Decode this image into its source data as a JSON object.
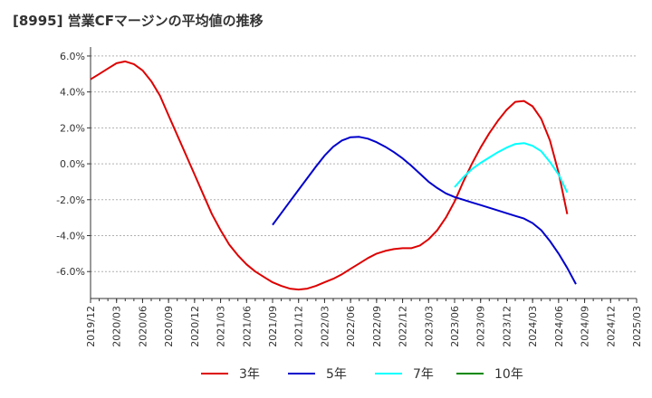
{
  "chart_data": {
    "type": "line",
    "title": "[8995]  営業CFマージンの平均値の推移",
    "xlabel": "",
    "ylabel": "",
    "x_ticks": [
      "2019/12",
      "2020/03",
      "2020/06",
      "2020/09",
      "2020/12",
      "2021/03",
      "2021/06",
      "2021/09",
      "2021/12",
      "2022/03",
      "2022/06",
      "2022/09",
      "2022/12",
      "2023/03",
      "2023/06",
      "2023/09",
      "2023/12",
      "2024/03",
      "2024/06",
      "2024/09",
      "2024/12",
      "2025/03"
    ],
    "y_ticks": [
      "-6.0%",
      "-4.0%",
      "-2.0%",
      "0.0%",
      "2.0%",
      "4.0%",
      "6.0%"
    ],
    "ylim": [
      -7.5,
      6.5
    ],
    "grid": "horizontal dashed",
    "legend_position": "bottom",
    "series": [
      {
        "name": "3年",
        "color": "#dd0000",
        "points": [
          [
            "2019/12",
            4.7
          ],
          [
            "2020/01",
            5.0
          ],
          [
            "2020/02",
            5.3
          ],
          [
            "2020/03",
            5.6
          ],
          [
            "2020/04",
            5.7
          ],
          [
            "2020/05",
            5.55
          ],
          [
            "2020/06",
            5.2
          ],
          [
            "2020/07",
            4.6
          ],
          [
            "2020/08",
            3.8
          ],
          [
            "2020/09",
            2.7
          ],
          [
            "2020/10",
            1.6
          ],
          [
            "2020/11",
            0.5
          ],
          [
            "2020/12",
            -0.6
          ],
          [
            "2021/01",
            -1.7
          ],
          [
            "2021/02",
            -2.8
          ],
          [
            "2021/03",
            -3.7
          ],
          [
            "2021/04",
            -4.5
          ],
          [
            "2021/05",
            -5.1
          ],
          [
            "2021/06",
            -5.6
          ],
          [
            "2021/07",
            -6.0
          ],
          [
            "2021/08",
            -6.3
          ],
          [
            "2021/09",
            -6.6
          ],
          [
            "2021/10",
            -6.8
          ],
          [
            "2021/11",
            -6.95
          ],
          [
            "2021/12",
            -7.0
          ],
          [
            "2022/01",
            -6.95
          ],
          [
            "2022/02",
            -6.8
          ],
          [
            "2022/03",
            -6.6
          ],
          [
            "2022/04",
            -6.4
          ],
          [
            "2022/05",
            -6.15
          ],
          [
            "2022/06",
            -5.85
          ],
          [
            "2022/07",
            -5.55
          ],
          [
            "2022/08",
            -5.25
          ],
          [
            "2022/09",
            -5.0
          ],
          [
            "2022/10",
            -4.85
          ],
          [
            "2022/11",
            -4.75
          ],
          [
            "2022/12",
            -4.7
          ],
          [
            "2023/01",
            -4.7
          ],
          [
            "2023/02",
            -4.55
          ],
          [
            "2023/03",
            -4.2
          ],
          [
            "2023/04",
            -3.7
          ],
          [
            "2023/05",
            -3.0
          ],
          [
            "2023/06",
            -2.1
          ],
          [
            "2023/07",
            -1.0
          ],
          [
            "2023/08",
            0.0
          ],
          [
            "2023/09",
            0.9
          ],
          [
            "2023/10",
            1.7
          ],
          [
            "2023/11",
            2.4
          ],
          [
            "2023/12",
            3.0
          ],
          [
            "2024/01",
            3.45
          ],
          [
            "2024/02",
            3.5
          ],
          [
            "2024/03",
            3.2
          ],
          [
            "2024/04",
            2.5
          ],
          [
            "2024/05",
            1.3
          ],
          [
            "2024/06",
            -0.5
          ],
          [
            "2024/07",
            -2.8
          ]
        ]
      },
      {
        "name": "5年",
        "color": "#0000cc",
        "points": [
          [
            "2021/09",
            -3.4
          ],
          [
            "2021/10",
            -2.75
          ],
          [
            "2021/11",
            -2.1
          ],
          [
            "2021/12",
            -1.45
          ],
          [
            "2022/01",
            -0.8
          ],
          [
            "2022/02",
            -0.15
          ],
          [
            "2022/03",
            0.45
          ],
          [
            "2022/04",
            0.95
          ],
          [
            "2022/05",
            1.3
          ],
          [
            "2022/06",
            1.48
          ],
          [
            "2022/07",
            1.5
          ],
          [
            "2022/08",
            1.4
          ],
          [
            "2022/09",
            1.2
          ],
          [
            "2022/10",
            0.95
          ],
          [
            "2022/11",
            0.65
          ],
          [
            "2022/12",
            0.3
          ],
          [
            "2023/01",
            -0.1
          ],
          [
            "2023/02",
            -0.55
          ],
          [
            "2023/03",
            -1.0
          ],
          [
            "2023/04",
            -1.35
          ],
          [
            "2023/05",
            -1.65
          ],
          [
            "2023/06",
            -1.85
          ],
          [
            "2023/07",
            -2.0
          ],
          [
            "2023/08",
            -2.15
          ],
          [
            "2023/09",
            -2.3
          ],
          [
            "2023/10",
            -2.45
          ],
          [
            "2023/11",
            -2.6
          ],
          [
            "2023/12",
            -2.75
          ],
          [
            "2024/01",
            -2.9
          ],
          [
            "2024/02",
            -3.05
          ],
          [
            "2024/03",
            -3.3
          ],
          [
            "2024/04",
            -3.7
          ],
          [
            "2024/05",
            -4.3
          ],
          [
            "2024/06",
            -5.0
          ],
          [
            "2024/07",
            -5.8
          ],
          [
            "2024/08",
            -6.7
          ]
        ]
      },
      {
        "name": "7年",
        "color": "#00ffff",
        "points": [
          [
            "2023/06",
            -1.3
          ],
          [
            "2023/07",
            -0.75
          ],
          [
            "2023/08",
            -0.3
          ],
          [
            "2023/09",
            0.05
          ],
          [
            "2023/10",
            0.35
          ],
          [
            "2023/11",
            0.65
          ],
          [
            "2023/12",
            0.9
          ],
          [
            "2024/01",
            1.1
          ],
          [
            "2024/02",
            1.15
          ],
          [
            "2024/03",
            1.0
          ],
          [
            "2024/04",
            0.7
          ],
          [
            "2024/05",
            0.1
          ],
          [
            "2024/06",
            -0.6
          ],
          [
            "2024/07",
            -1.6
          ]
        ]
      },
      {
        "name": "10年",
        "color": "#008800",
        "points": []
      }
    ]
  }
}
